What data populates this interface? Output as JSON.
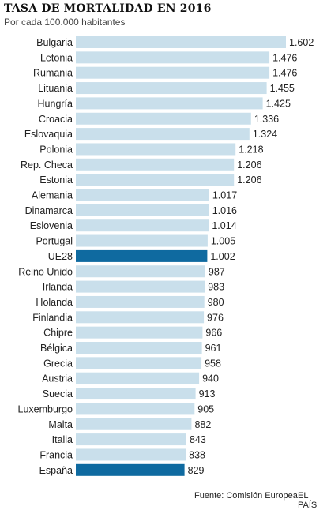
{
  "header": {
    "title": "TASA DE MORTALIDAD EN 2016",
    "subtitle": "Por cada 100.000 habitantes"
  },
  "footer": {
    "source": "Fuente: Comisión Europea.",
    "brand": "EL PAÍS"
  },
  "colors": {
    "bar": "#c9dfeb",
    "highlight": "#0f6aa0",
    "label": "#222222"
  },
  "chart_data": {
    "type": "bar",
    "orientation": "horizontal",
    "title": "TASA DE MORTALIDAD EN 2016",
    "subtitle": "Por cada 100.000 habitantes",
    "categories": [
      "Bulgaria",
      "Letonia",
      "Rumania",
      "Lituania",
      "Hungría",
      "Croacia",
      "Eslovaquia",
      "Polonia",
      "Rep. Checa",
      "Estonia",
      "Alemania",
      "Dinamarca",
      "Eslovenia",
      "Portugal",
      "UE28",
      "Reino Unido",
      "Irlanda",
      "Holanda",
      "Finlandia",
      "Chipre",
      "Bélgica",
      "Grecia",
      "Austria",
      "Suecia",
      "Luxemburgo",
      "Malta",
      "Italia",
      "Francia",
      "España"
    ],
    "values": [
      1602,
      1476,
      1476,
      1455,
      1425,
      1336,
      1324,
      1218,
      1206,
      1206,
      1017,
      1016,
      1014,
      1005,
      1002,
      987,
      983,
      980,
      976,
      966,
      961,
      958,
      940,
      913,
      905,
      882,
      843,
      838,
      829
    ],
    "value_labels": [
      "1.602",
      "1.476",
      "1.476",
      "1.455",
      "1.425",
      "1.336",
      "1.324",
      "1.218",
      "1.206",
      "1.206",
      "1.017",
      "1.016",
      "1.014",
      "1.005",
      "1.002",
      "987",
      "983",
      "980",
      "976",
      "966",
      "961",
      "958",
      "940",
      "913",
      "905",
      "882",
      "843",
      "838",
      "829"
    ],
    "highlighted": [
      "UE28",
      "España"
    ],
    "xlim": [
      0,
      1602
    ],
    "grid": false,
    "legend": "none"
  }
}
